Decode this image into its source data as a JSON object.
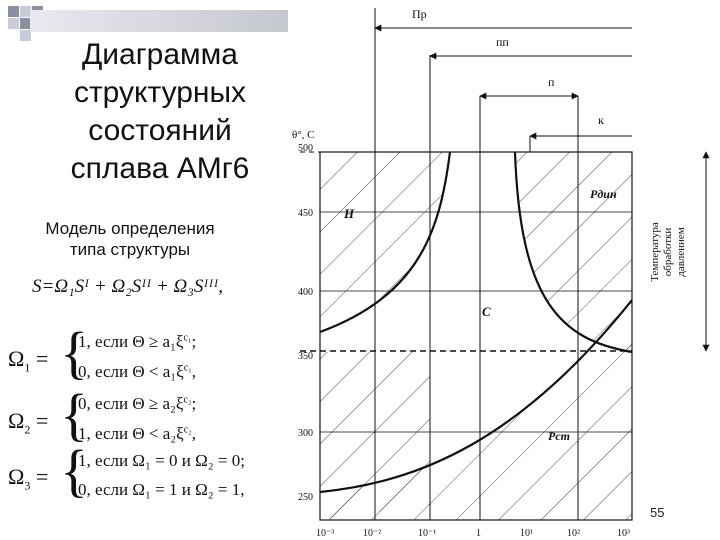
{
  "slide": {
    "title_lines": [
      "Диаграмма",
      "структурных",
      "состояний",
      "сплава АМг6"
    ],
    "subtitle_lines": [
      "Модель определения",
      "типа структуры"
    ],
    "slide_number": "55"
  },
  "formulas": {
    "main": "S=Ω₁Sᴵ + Ω₂Sᴵᴵ + Ω₃Sᴵᴵᴵ,",
    "omega1_symbol": "Ω",
    "omega1_sub": "1",
    "omega1_case1": "1, если  Θ  ≥  a₁ξ",
    "omega1_case1_sup": "c₁",
    "omega1_case2": "0, если  Θ  <  a₁ξ",
    "omega1_case2_sup": "c₁",
    "omega2_symbol": "Ω",
    "omega2_sub": "2",
    "omega2_case1": "0, если  Θ  ≥  a₂ξ",
    "omega2_case1_sup": "c₂",
    "omega2_case2": "1, если  Θ  <  a₂ξ",
    "omega2_case2_sup": "c₂",
    "omega3_symbol": "Ω",
    "omega3_sub": "3",
    "omega3_case1": "1, если  Ω₁ = 0 и Ω₂ = 0;",
    "omega3_case2": "0, если  Ω₁ = 1 и Ω₂ = 1,"
  },
  "diagram": {
    "top_labels": [
      "Пр",
      "пп",
      "п",
      "к"
    ],
    "y_axis_title": "θ°, С",
    "y_ticks": [
      "500",
      "450",
      "400",
      "350",
      "300",
      "250"
    ],
    "x_ticks": [
      "10⁻³",
      "10⁻²",
      "10⁻¹",
      "1",
      "10¹",
      "10²",
      "10³"
    ],
    "region_labels": {
      "h": "Н",
      "c": "С",
      "p_din": "Pдин",
      "p_st": "Pст"
    },
    "side_label_lines": [
      "Температура",
      "обработки",
      "давлением"
    ]
  },
  "colors": {
    "bar_start": "#e9e9f0",
    "bar_end": "#c5c7cf",
    "square_dark": "#8b8fa0",
    "square_light": "#c9ccd6"
  }
}
